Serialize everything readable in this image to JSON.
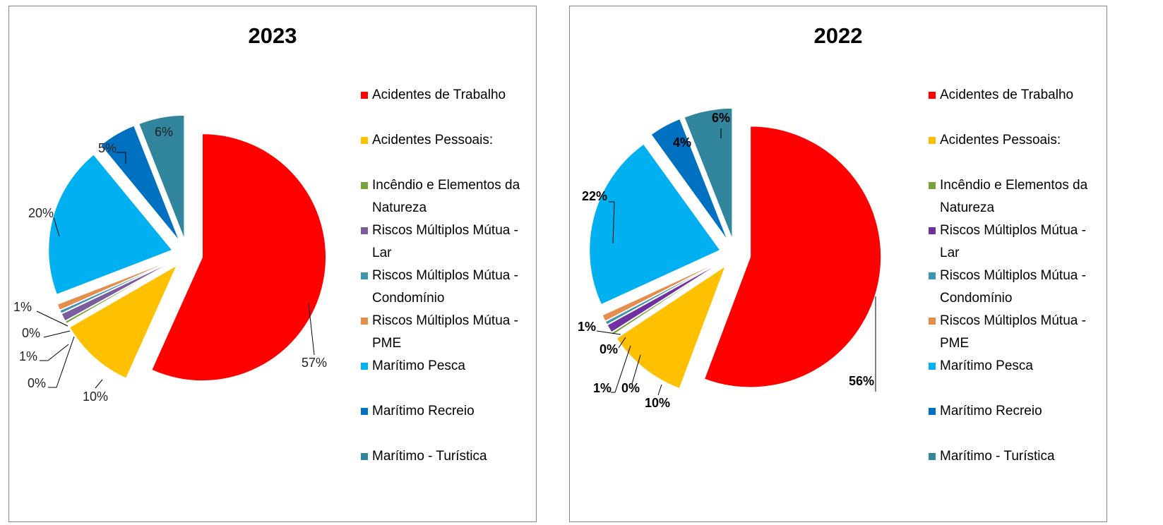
{
  "chart_data": [
    {
      "type": "pie",
      "title": "2023",
      "categories": [
        "Acidentes de Trabalho",
        "Acidentes Pessoais:",
        "Incêndio e Elementos da Natureza",
        "Riscos Múltiplos Mútua - Lar",
        "Riscos Múltiplos Mútua - Condomínio",
        "Riscos Múltiplos Mútua - PME",
        "Marítimo Pesca",
        "Marítimo Recreio",
        "Marítimo - Turística"
      ],
      "values": [
        57,
        10,
        0.3,
        1,
        0.4,
        0.8,
        20,
        5,
        6
      ],
      "data_labels": [
        "57%",
        "10%",
        "0%",
        "1%",
        "0%",
        "1%",
        "20%",
        "5%",
        "6%"
      ],
      "colors": [
        "#FF0000",
        "#FFC000",
        "#77A33D",
        "#7B5C9E",
        "#3D95B0",
        "#E58D4B",
        "#00B0F0",
        "#0070C0",
        "#31859C"
      ],
      "exploded": true,
      "legend_position": "right"
    },
    {
      "type": "pie",
      "title": "2022",
      "categories": [
        "Acidentes de Trabalho",
        "Acidentes Pessoais:",
        "Incêndio e Elementos da Natureza",
        "Riscos Múltiplos Mútua - Lar",
        "Riscos Múltiplos Mútua - Condomínio",
        "Riscos Múltiplos Mútua - PME",
        "Marítimo Pesca",
        "Marítimo Recreio",
        "Marítimo - Turística"
      ],
      "values": [
        56,
        10,
        0.3,
        1,
        0.4,
        0.8,
        22,
        4,
        6
      ],
      "data_labels": [
        "56%",
        "10%",
        "0%",
        "1%",
        "0%",
        "1%",
        "22%",
        "4%",
        "6%"
      ],
      "colors": [
        "#FF0000",
        "#FFC000",
        "#77A33D",
        "#7030A0",
        "#3D95B0",
        "#E58D4B",
        "#00B0F0",
        "#0070C0",
        "#31859C"
      ],
      "exploded": true,
      "legend_position": "right"
    }
  ]
}
